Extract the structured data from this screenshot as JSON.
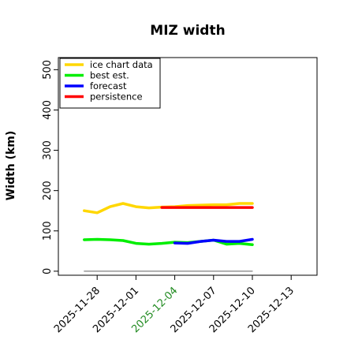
{
  "chart_data": {
    "type": "line",
    "title": "MIZ width",
    "ylabel": "Width (km)",
    "xlabel": "",
    "ylim": [
      -10,
      530
    ],
    "xlim": [
      "2025-11-25",
      "2025-12-15"
    ],
    "yticks": [
      0,
      100,
      200,
      300,
      400,
      500
    ],
    "xticks": [
      "2025-11-28",
      "2025-12-01",
      "2025-12-04",
      "2025-12-07",
      "2025-12-10",
      "2025-12-13"
    ],
    "highlight_tick": "2025-12-04",
    "highlight_color": "#228B22",
    "legend_position": "upper-left",
    "grid": false,
    "series": [
      {
        "name": "ice chart data",
        "color": "#FFD700",
        "x": [
          "2025-11-27",
          "2025-11-28",
          "2025-11-29",
          "2025-11-30",
          "2025-12-01",
          "2025-12-02",
          "2025-12-03",
          "2025-12-04",
          "2025-12-05",
          "2025-12-06",
          "2025-12-07",
          "2025-12-08",
          "2025-12-09",
          "2025-12-10"
        ],
        "values": [
          150,
          145,
          160,
          168,
          160,
          157,
          159,
          160,
          163,
          164,
          165,
          165,
          168,
          168
        ]
      },
      {
        "name": "best est.",
        "color": "#00EE00",
        "x": [
          "2025-11-27",
          "2025-11-28",
          "2025-11-29",
          "2025-11-30",
          "2025-12-01",
          "2025-12-02",
          "2025-12-03",
          "2025-12-04",
          "2025-12-05",
          "2025-12-06",
          "2025-12-07",
          "2025-12-08",
          "2025-12-09",
          "2025-12-10"
        ],
        "values": [
          78,
          79,
          78,
          76,
          69,
          67,
          69,
          72,
          71,
          74,
          77,
          67,
          69,
          66
        ]
      },
      {
        "name": "forecast",
        "color": "#0000FF",
        "x": [
          "2025-12-04",
          "2025-12-05",
          "2025-12-06",
          "2025-12-07",
          "2025-12-08",
          "2025-12-09",
          "2025-12-10"
        ],
        "values": [
          70,
          69,
          74,
          77,
          74,
          74,
          79
        ]
      },
      {
        "name": "persistence",
        "color": "#FF0000",
        "x": [
          "2025-12-03",
          "2025-12-10"
        ],
        "values": [
          158,
          158
        ]
      },
      {
        "name": "",
        "color": "#808080",
        "x": [
          "2025-11-27",
          "2025-12-10"
        ],
        "values": [
          0,
          0
        ],
        "thin": true
      }
    ]
  }
}
